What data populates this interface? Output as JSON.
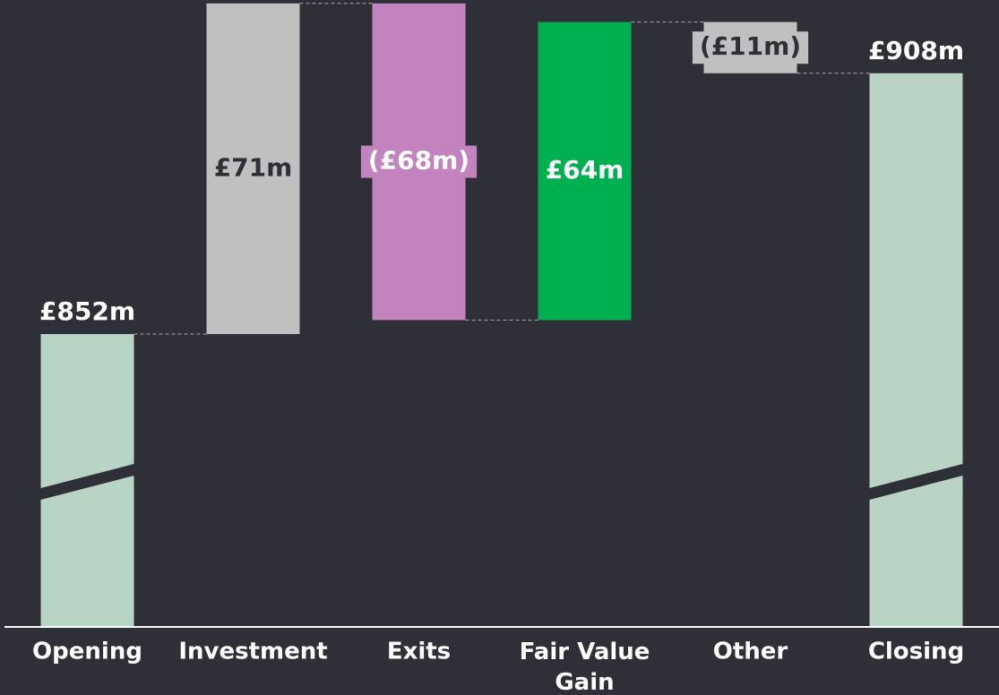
{
  "chart_data": {
    "type": "waterfall",
    "categories": [
      "Opening",
      "Investment",
      "Exits",
      "Fair Value Gain",
      "Other",
      "Closing"
    ],
    "values": [
      852,
      71,
      -68,
      64,
      -11,
      908
    ],
    "value_labels": [
      "£852m",
      "£71m",
      "(£68m)",
      "£64m",
      "(£11m)",
      "£908m"
    ],
    "totals": [
      true,
      false,
      false,
      false,
      false,
      true
    ],
    "colors": [
      "#b9d4c4",
      "#c0c0c0",
      "#c383be",
      "#00b050",
      "#c0c0c0",
      "#b9d4c4"
    ],
    "label_colors": [
      "#ffffff",
      "#2f2f37",
      "#ffffff",
      "#ffffff",
      "#2f2f37",
      "#ffffff"
    ],
    "axis_break": true
  }
}
